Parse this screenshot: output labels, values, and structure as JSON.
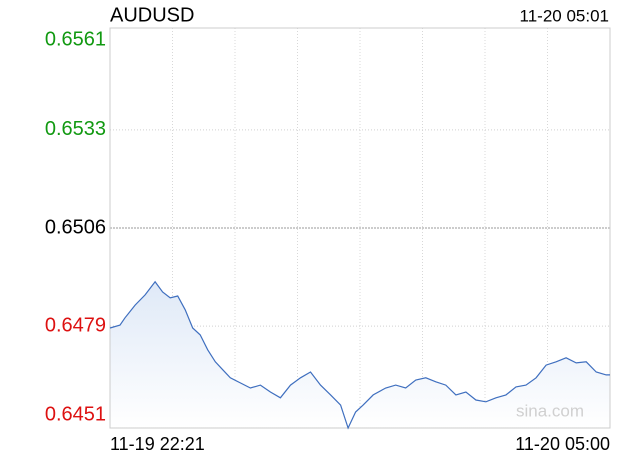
{
  "chart_data": {
    "type": "line",
    "title": "AUDUSD",
    "timestamp": "11-20 05:01",
    "watermark": "sina.com",
    "x": [
      0,
      8,
      12,
      20,
      28,
      36,
      42,
      48,
      54,
      60,
      66,
      72,
      78,
      84,
      90,
      96,
      104,
      112,
      120,
      128,
      136,
      144,
      152,
      160,
      168,
      176,
      184,
      190,
      196,
      202,
      210,
      220,
      228,
      236,
      244,
      252,
      260,
      268,
      276,
      284,
      292,
      300,
      308,
      316,
      324,
      332,
      340,
      348,
      356,
      364,
      372,
      380,
      388,
      396,
      399
    ],
    "series": [
      {
        "name": "AUDUSD",
        "color": "#3f6fbf",
        "values": [
          0.64785,
          0.64793,
          0.64813,
          0.64848,
          0.64876,
          0.64912,
          0.64884,
          0.64868,
          0.64873,
          0.64835,
          0.64785,
          0.64766,
          0.64725,
          0.64692,
          0.6467,
          0.64648,
          0.64634,
          0.6462,
          0.64628,
          0.64609,
          0.64593,
          0.64628,
          0.64648,
          0.64664,
          0.64628,
          0.64601,
          0.64573,
          0.6451,
          0.64554,
          0.64573,
          0.64601,
          0.6462,
          0.64628,
          0.6462,
          0.64642,
          0.64648,
          0.64637,
          0.64628,
          0.64601,
          0.64609,
          0.64587,
          0.64582,
          0.64593,
          0.64601,
          0.64623,
          0.64628,
          0.64648,
          0.64683,
          0.64692,
          0.64703,
          0.64689,
          0.64692,
          0.64664,
          0.64656,
          0.64656
        ]
      }
    ],
    "xlim": [
      0,
      399
    ],
    "xticks": [
      {
        "value": 0,
        "label": "11-19 22:21"
      },
      {
        "value": 399,
        "label": "11-20 05:00"
      }
    ],
    "ylim": [
      0.6451,
      0.6561
    ],
    "yticks": [
      0.6561,
      0.6533,
      0.6506,
      0.6479,
      0.6451
    ],
    "ytick_colors": [
      "#119911",
      "#119911",
      "#000000",
      "#dd1111",
      "#dd1111"
    ],
    "grid": true
  }
}
